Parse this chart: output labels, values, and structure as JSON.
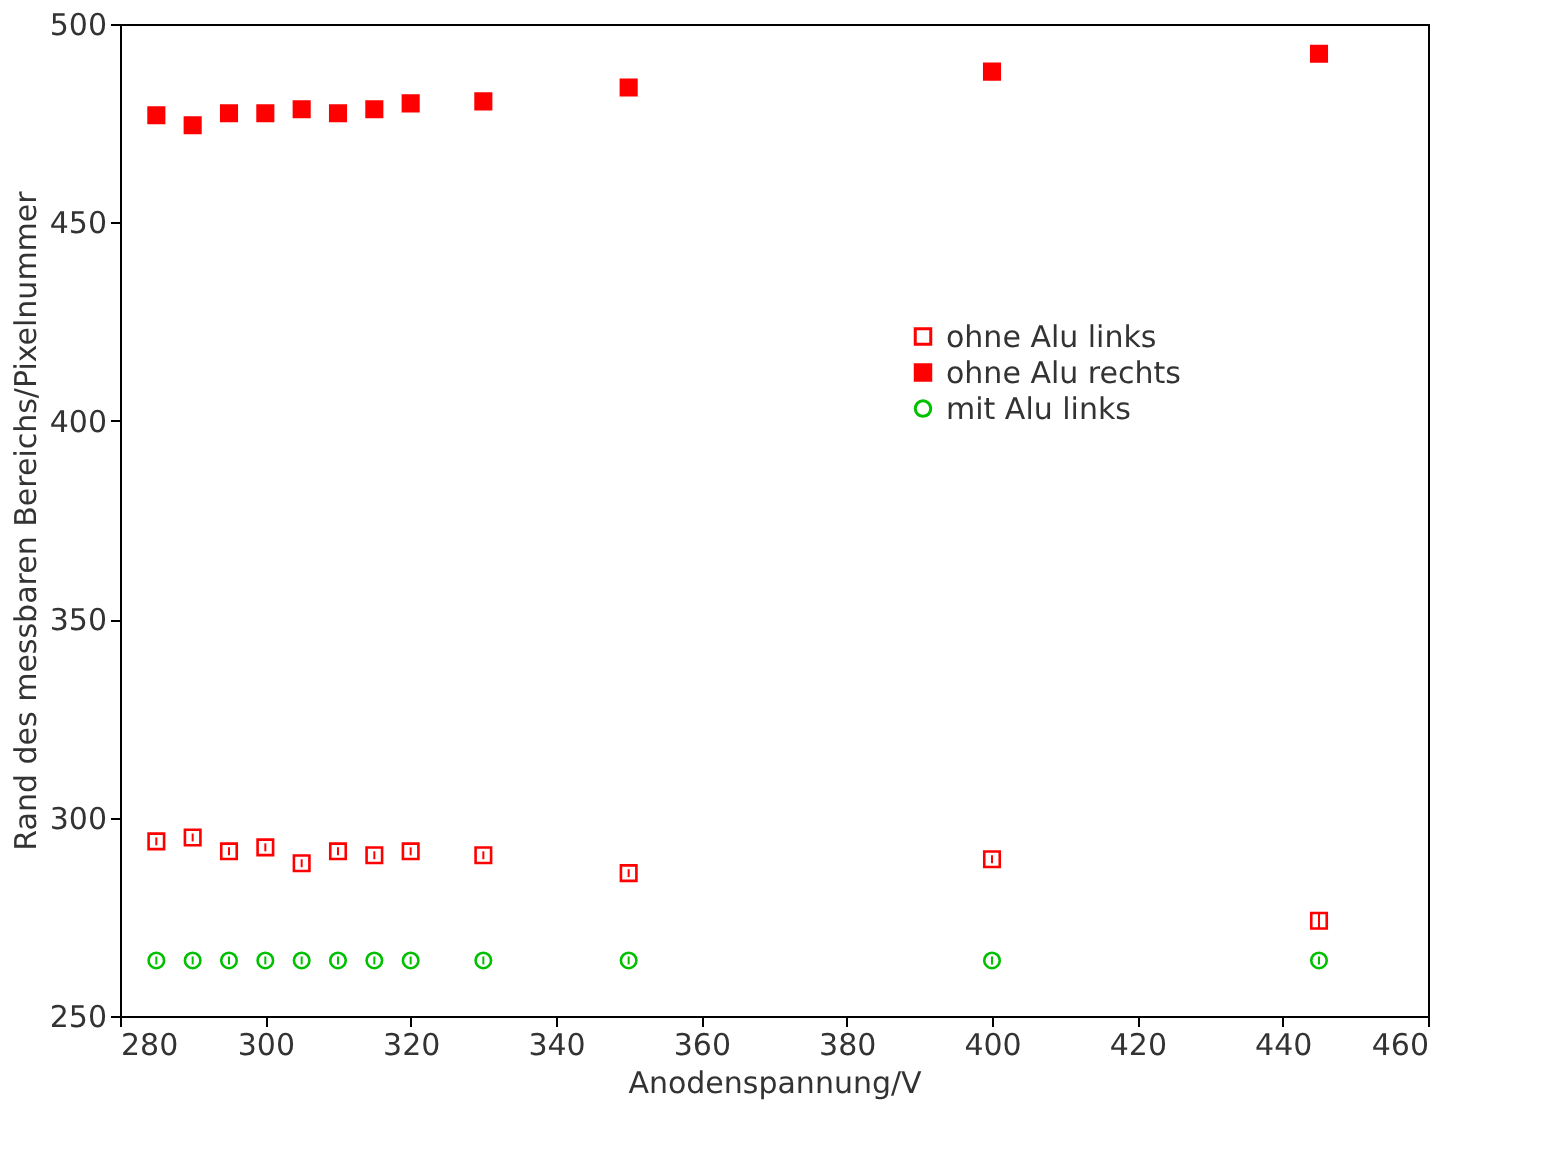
{
  "chart_data": {
    "type": "scatter",
    "xlabel": "Anodenspannung/V",
    "ylabel": "Rand des messbaren Bereichs/Pixelnummer",
    "x": [
      285,
      290,
      295,
      300,
      305,
      310,
      315,
      320,
      330,
      350,
      400,
      445
    ],
    "series": [
      {
        "name": "ohne Alu links",
        "color": "#ff0000",
        "marker": "square",
        "values": [
          294,
          295,
          291.5,
          292.5,
          288.5,
          291.5,
          290.5,
          291.5,
          290.5,
          286,
          289.5,
          274
        ],
        "errors": [
          1,
          1,
          1,
          1,
          1,
          1,
          1,
          1,
          1,
          1,
          1,
          2
        ]
      },
      {
        "name": "ohne Alu rechts",
        "color": "#ff0000",
        "marker": "square",
        "values": [
          477,
          474.5,
          477.5,
          477.5,
          478.5,
          477.5,
          478.5,
          480,
          480.5,
          484,
          488,
          492.5
        ]
      },
      {
        "name": "mit Alu links",
        "color": "#00c000",
        "marker": "circle",
        "values": [
          264,
          264,
          264,
          264,
          264,
          264,
          264,
          264,
          264,
          264,
          264,
          264
        ],
        "errors": [
          1,
          1,
          1,
          1,
          1,
          1,
          1,
          1,
          1,
          1,
          1,
          1
        ]
      }
    ],
    "xlim": [
      280,
      460
    ],
    "xticks": [
      280,
      300,
      320,
      340,
      360,
      380,
      400,
      420,
      440,
      460
    ],
    "ylim": [
      250,
      500
    ],
    "yticks": [
      250,
      300,
      350,
      400,
      450,
      500
    ],
    "grid": false,
    "legend": "right"
  }
}
